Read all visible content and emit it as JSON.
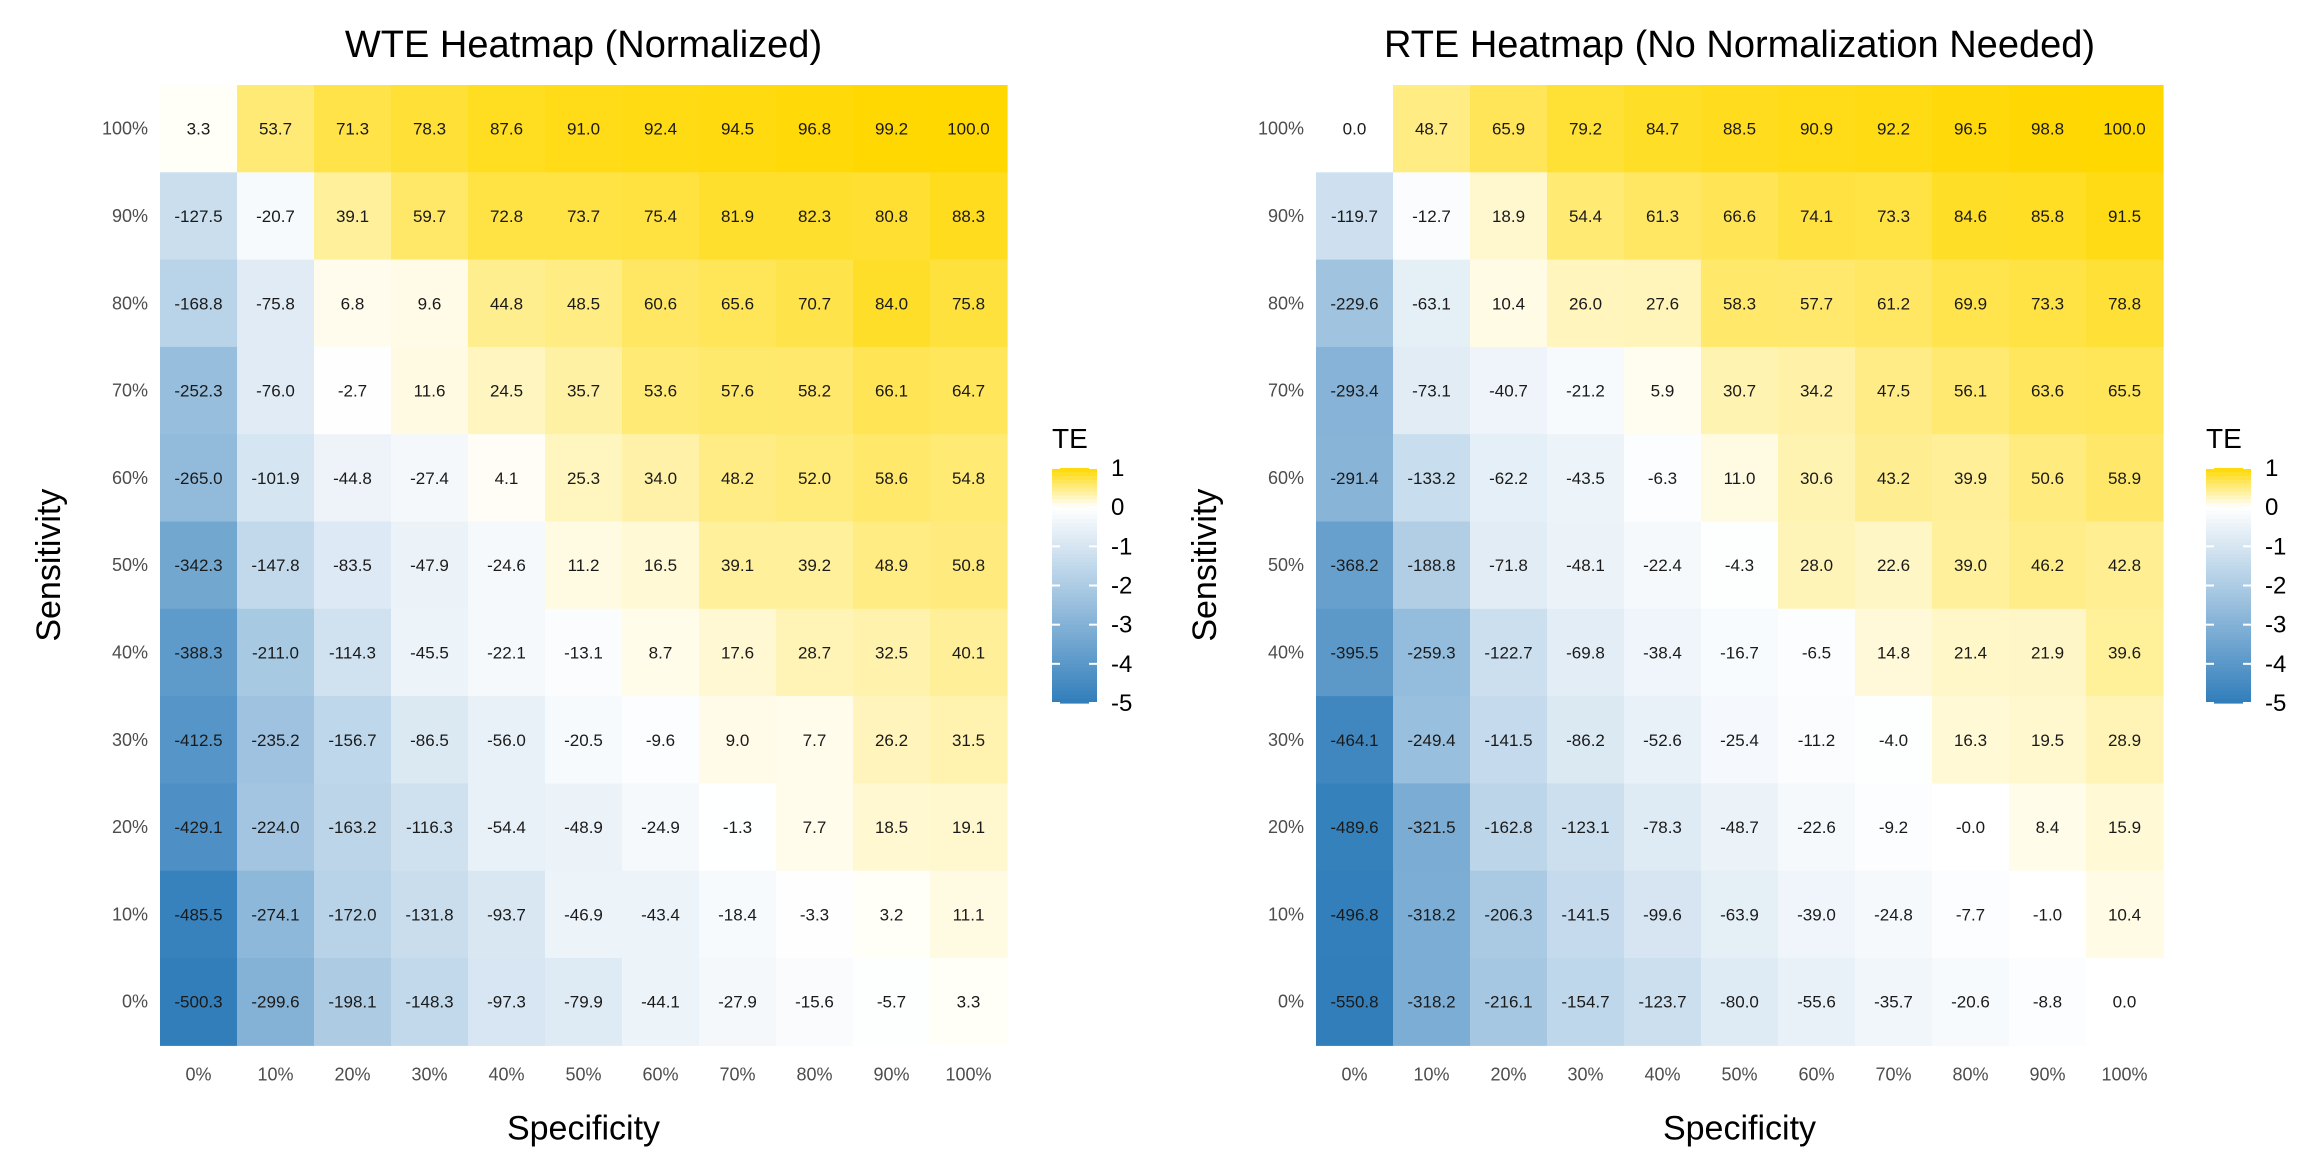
{
  "chart_data": [
    {
      "type": "heatmap",
      "title": "WTE Heatmap (Normalized)",
      "xlabel": "Specificity",
      "ylabel": "Sensitivity",
      "x": [
        "0%",
        "10%",
        "20%",
        "30%",
        "40%",
        "50%",
        "60%",
        "70%",
        "80%",
        "90%",
        "100%"
      ],
      "y": [
        "100%",
        "90%",
        "80%",
        "70%",
        "60%",
        "50%",
        "40%",
        "30%",
        "20%",
        "10%",
        "0%"
      ],
      "values": [
        [
          3.3,
          53.7,
          71.3,
          78.3,
          87.6,
          91.0,
          92.4,
          94.5,
          96.8,
          99.2,
          100.0
        ],
        [
          -127.5,
          -20.7,
          39.1,
          59.7,
          72.8,
          73.7,
          75.4,
          81.9,
          82.3,
          80.8,
          88.3
        ],
        [
          -168.8,
          -75.8,
          6.8,
          9.6,
          44.8,
          48.5,
          60.6,
          65.6,
          70.7,
          84.0,
          75.8
        ],
        [
          -252.3,
          -76.0,
          -2.7,
          11.6,
          24.5,
          35.7,
          53.6,
          57.6,
          58.2,
          66.1,
          64.7
        ],
        [
          -265.0,
          -101.9,
          -44.8,
          -27.4,
          4.1,
          25.3,
          34.0,
          48.2,
          52.0,
          58.6,
          54.8
        ],
        [
          -342.3,
          -147.8,
          -83.5,
          -47.9,
          -24.6,
          11.2,
          16.5,
          39.1,
          39.2,
          48.9,
          50.8
        ],
        [
          -388.3,
          -211.0,
          -114.3,
          -45.5,
          -22.1,
          -13.1,
          8.7,
          17.6,
          28.7,
          32.5,
          40.1
        ],
        [
          -412.5,
          -235.2,
          -156.7,
          -86.5,
          -56.0,
          -20.5,
          -9.6,
          9.0,
          7.7,
          26.2,
          31.5
        ],
        [
          -429.1,
          -224.0,
          -163.2,
          -116.3,
          -54.4,
          -48.9,
          -24.9,
          -1.3,
          7.7,
          18.5,
          19.1
        ],
        [
          -485.5,
          -274.1,
          -172.0,
          -131.8,
          -93.7,
          -46.9,
          -43.4,
          -18.4,
          -3.3,
          3.2,
          11.1
        ],
        [
          -500.3,
          -299.6,
          -198.1,
          -148.3,
          -97.3,
          -79.9,
          -44.1,
          -27.9,
          -15.6,
          -5.7,
          3.3
        ]
      ],
      "legend": {
        "title": "TE",
        "ticks": [
          "1",
          "0",
          "-1",
          "-2",
          "-3",
          "-4",
          "-5"
        ],
        "range": [
          -5,
          1
        ],
        "placement": "right"
      }
    },
    {
      "type": "heatmap",
      "title": "RTE Heatmap (No Normalization Needed)",
      "xlabel": "Specificity",
      "ylabel": "Sensitivity",
      "x": [
        "0%",
        "10%",
        "20%",
        "30%",
        "40%",
        "50%",
        "60%",
        "70%",
        "80%",
        "90%",
        "100%"
      ],
      "y": [
        "100%",
        "90%",
        "80%",
        "70%",
        "60%",
        "50%",
        "40%",
        "30%",
        "20%",
        "10%",
        "0%"
      ],
      "values": [
        [
          0.0,
          48.7,
          65.9,
          79.2,
          84.7,
          88.5,
          90.9,
          92.2,
          96.5,
          98.8,
          100.0
        ],
        [
          -119.7,
          -12.7,
          18.9,
          54.4,
          61.3,
          66.6,
          74.1,
          73.3,
          84.6,
          85.8,
          91.5
        ],
        [
          -229.6,
          -63.1,
          10.4,
          26.0,
          27.6,
          58.3,
          57.7,
          61.2,
          69.9,
          73.3,
          78.8
        ],
        [
          -293.4,
          -73.1,
          -40.7,
          -21.2,
          5.9,
          30.7,
          34.2,
          47.5,
          56.1,
          63.6,
          65.5
        ],
        [
          -291.4,
          -133.2,
          -62.2,
          -43.5,
          -6.3,
          11.0,
          30.6,
          43.2,
          39.9,
          50.6,
          58.9
        ],
        [
          -368.2,
          -188.8,
          -71.8,
          -48.1,
          -22.4,
          -4.3,
          28.0,
          22.6,
          39.0,
          46.2,
          42.8
        ],
        [
          -395.5,
          -259.3,
          -122.7,
          -69.8,
          -38.4,
          -16.7,
          -6.5,
          14.8,
          21.4,
          21.9,
          39.6
        ],
        [
          -464.1,
          -249.4,
          -141.5,
          -86.2,
          -52.6,
          -25.4,
          -11.2,
          -4.0,
          16.3,
          19.5,
          28.9
        ],
        [
          -489.6,
          -321.5,
          -162.8,
          -123.1,
          -78.3,
          -48.7,
          -22.6,
          -9.2,
          "-0.0",
          8.4,
          15.9
        ],
        [
          -496.8,
          -318.2,
          -206.3,
          -141.5,
          -99.6,
          -63.9,
          -39.0,
          -24.8,
          -7.7,
          -1.0,
          10.4
        ],
        [
          -550.8,
          -318.2,
          -216.1,
          -154.7,
          -123.7,
          -80.0,
          -55.6,
          -35.7,
          -20.6,
          -8.8,
          0.0
        ]
      ],
      "legend": {
        "title": "TE",
        "ticks": [
          "1",
          "0",
          "-1",
          "-2",
          "-3",
          "-4",
          "-5"
        ],
        "range": [
          -5,
          1
        ],
        "placement": "right"
      }
    }
  ]
}
